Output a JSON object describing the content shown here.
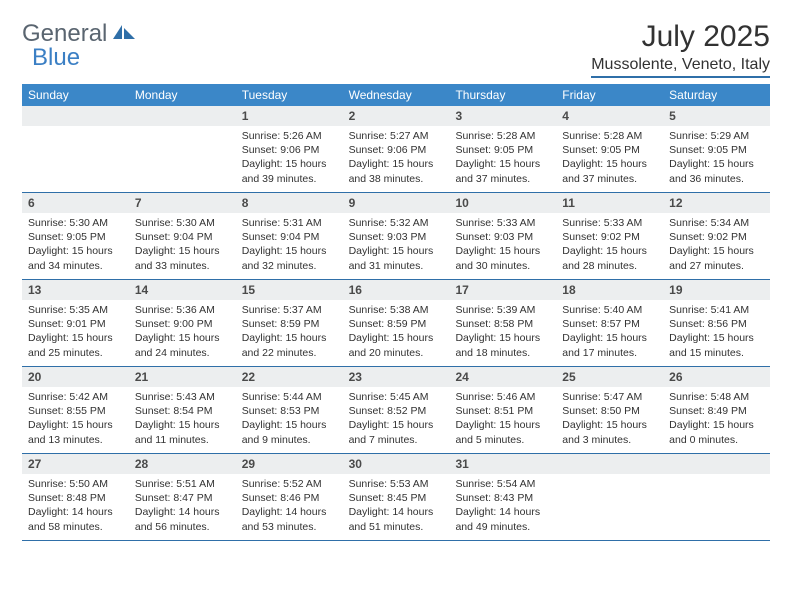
{
  "logo": {
    "word1": "General",
    "word2": "Blue"
  },
  "title": "July 2025",
  "location": "Mussolente, Veneto, Italy",
  "colors": {
    "header_bg": "#3b87c8",
    "header_text": "#ffffff",
    "band_bg": "#eceeef",
    "rule": "#2f6fa8",
    "text": "#323232",
    "logo_gray": "#5a6570",
    "logo_blue": "#3b7fc4"
  },
  "day_names": [
    "Sunday",
    "Monday",
    "Tuesday",
    "Wednesday",
    "Thursday",
    "Friday",
    "Saturday"
  ],
  "weeks": [
    [
      {
        "empty": true
      },
      {
        "empty": true
      },
      {
        "num": "1",
        "sunrise": "Sunrise: 5:26 AM",
        "sunset": "Sunset: 9:06 PM",
        "day1": "Daylight: 15 hours",
        "day2": "and 39 minutes."
      },
      {
        "num": "2",
        "sunrise": "Sunrise: 5:27 AM",
        "sunset": "Sunset: 9:06 PM",
        "day1": "Daylight: 15 hours",
        "day2": "and 38 minutes."
      },
      {
        "num": "3",
        "sunrise": "Sunrise: 5:28 AM",
        "sunset": "Sunset: 9:05 PM",
        "day1": "Daylight: 15 hours",
        "day2": "and 37 minutes."
      },
      {
        "num": "4",
        "sunrise": "Sunrise: 5:28 AM",
        "sunset": "Sunset: 9:05 PM",
        "day1": "Daylight: 15 hours",
        "day2": "and 37 minutes."
      },
      {
        "num": "5",
        "sunrise": "Sunrise: 5:29 AM",
        "sunset": "Sunset: 9:05 PM",
        "day1": "Daylight: 15 hours",
        "day2": "and 36 minutes."
      }
    ],
    [
      {
        "num": "6",
        "sunrise": "Sunrise: 5:30 AM",
        "sunset": "Sunset: 9:05 PM",
        "day1": "Daylight: 15 hours",
        "day2": "and 34 minutes."
      },
      {
        "num": "7",
        "sunrise": "Sunrise: 5:30 AM",
        "sunset": "Sunset: 9:04 PM",
        "day1": "Daylight: 15 hours",
        "day2": "and 33 minutes."
      },
      {
        "num": "8",
        "sunrise": "Sunrise: 5:31 AM",
        "sunset": "Sunset: 9:04 PM",
        "day1": "Daylight: 15 hours",
        "day2": "and 32 minutes."
      },
      {
        "num": "9",
        "sunrise": "Sunrise: 5:32 AM",
        "sunset": "Sunset: 9:03 PM",
        "day1": "Daylight: 15 hours",
        "day2": "and 31 minutes."
      },
      {
        "num": "10",
        "sunrise": "Sunrise: 5:33 AM",
        "sunset": "Sunset: 9:03 PM",
        "day1": "Daylight: 15 hours",
        "day2": "and 30 minutes."
      },
      {
        "num": "11",
        "sunrise": "Sunrise: 5:33 AM",
        "sunset": "Sunset: 9:02 PM",
        "day1": "Daylight: 15 hours",
        "day2": "and 28 minutes."
      },
      {
        "num": "12",
        "sunrise": "Sunrise: 5:34 AM",
        "sunset": "Sunset: 9:02 PM",
        "day1": "Daylight: 15 hours",
        "day2": "and 27 minutes."
      }
    ],
    [
      {
        "num": "13",
        "sunrise": "Sunrise: 5:35 AM",
        "sunset": "Sunset: 9:01 PM",
        "day1": "Daylight: 15 hours",
        "day2": "and 25 minutes."
      },
      {
        "num": "14",
        "sunrise": "Sunrise: 5:36 AM",
        "sunset": "Sunset: 9:00 PM",
        "day1": "Daylight: 15 hours",
        "day2": "and 24 minutes."
      },
      {
        "num": "15",
        "sunrise": "Sunrise: 5:37 AM",
        "sunset": "Sunset: 8:59 PM",
        "day1": "Daylight: 15 hours",
        "day2": "and 22 minutes."
      },
      {
        "num": "16",
        "sunrise": "Sunrise: 5:38 AM",
        "sunset": "Sunset: 8:59 PM",
        "day1": "Daylight: 15 hours",
        "day2": "and 20 minutes."
      },
      {
        "num": "17",
        "sunrise": "Sunrise: 5:39 AM",
        "sunset": "Sunset: 8:58 PM",
        "day1": "Daylight: 15 hours",
        "day2": "and 18 minutes."
      },
      {
        "num": "18",
        "sunrise": "Sunrise: 5:40 AM",
        "sunset": "Sunset: 8:57 PM",
        "day1": "Daylight: 15 hours",
        "day2": "and 17 minutes."
      },
      {
        "num": "19",
        "sunrise": "Sunrise: 5:41 AM",
        "sunset": "Sunset: 8:56 PM",
        "day1": "Daylight: 15 hours",
        "day2": "and 15 minutes."
      }
    ],
    [
      {
        "num": "20",
        "sunrise": "Sunrise: 5:42 AM",
        "sunset": "Sunset: 8:55 PM",
        "day1": "Daylight: 15 hours",
        "day2": "and 13 minutes."
      },
      {
        "num": "21",
        "sunrise": "Sunrise: 5:43 AM",
        "sunset": "Sunset: 8:54 PM",
        "day1": "Daylight: 15 hours",
        "day2": "and 11 minutes."
      },
      {
        "num": "22",
        "sunrise": "Sunrise: 5:44 AM",
        "sunset": "Sunset: 8:53 PM",
        "day1": "Daylight: 15 hours",
        "day2": "and 9 minutes."
      },
      {
        "num": "23",
        "sunrise": "Sunrise: 5:45 AM",
        "sunset": "Sunset: 8:52 PM",
        "day1": "Daylight: 15 hours",
        "day2": "and 7 minutes."
      },
      {
        "num": "24",
        "sunrise": "Sunrise: 5:46 AM",
        "sunset": "Sunset: 8:51 PM",
        "day1": "Daylight: 15 hours",
        "day2": "and 5 minutes."
      },
      {
        "num": "25",
        "sunrise": "Sunrise: 5:47 AM",
        "sunset": "Sunset: 8:50 PM",
        "day1": "Daylight: 15 hours",
        "day2": "and 3 minutes."
      },
      {
        "num": "26",
        "sunrise": "Sunrise: 5:48 AM",
        "sunset": "Sunset: 8:49 PM",
        "day1": "Daylight: 15 hours",
        "day2": "and 0 minutes."
      }
    ],
    [
      {
        "num": "27",
        "sunrise": "Sunrise: 5:50 AM",
        "sunset": "Sunset: 8:48 PM",
        "day1": "Daylight: 14 hours",
        "day2": "and 58 minutes."
      },
      {
        "num": "28",
        "sunrise": "Sunrise: 5:51 AM",
        "sunset": "Sunset: 8:47 PM",
        "day1": "Daylight: 14 hours",
        "day2": "and 56 minutes."
      },
      {
        "num": "29",
        "sunrise": "Sunrise: 5:52 AM",
        "sunset": "Sunset: 8:46 PM",
        "day1": "Daylight: 14 hours",
        "day2": "and 53 minutes."
      },
      {
        "num": "30",
        "sunrise": "Sunrise: 5:53 AM",
        "sunset": "Sunset: 8:45 PM",
        "day1": "Daylight: 14 hours",
        "day2": "and 51 minutes."
      },
      {
        "num": "31",
        "sunrise": "Sunrise: 5:54 AM",
        "sunset": "Sunset: 8:43 PM",
        "day1": "Daylight: 14 hours",
        "day2": "and 49 minutes."
      },
      {
        "empty": true
      },
      {
        "empty": true
      }
    ]
  ]
}
